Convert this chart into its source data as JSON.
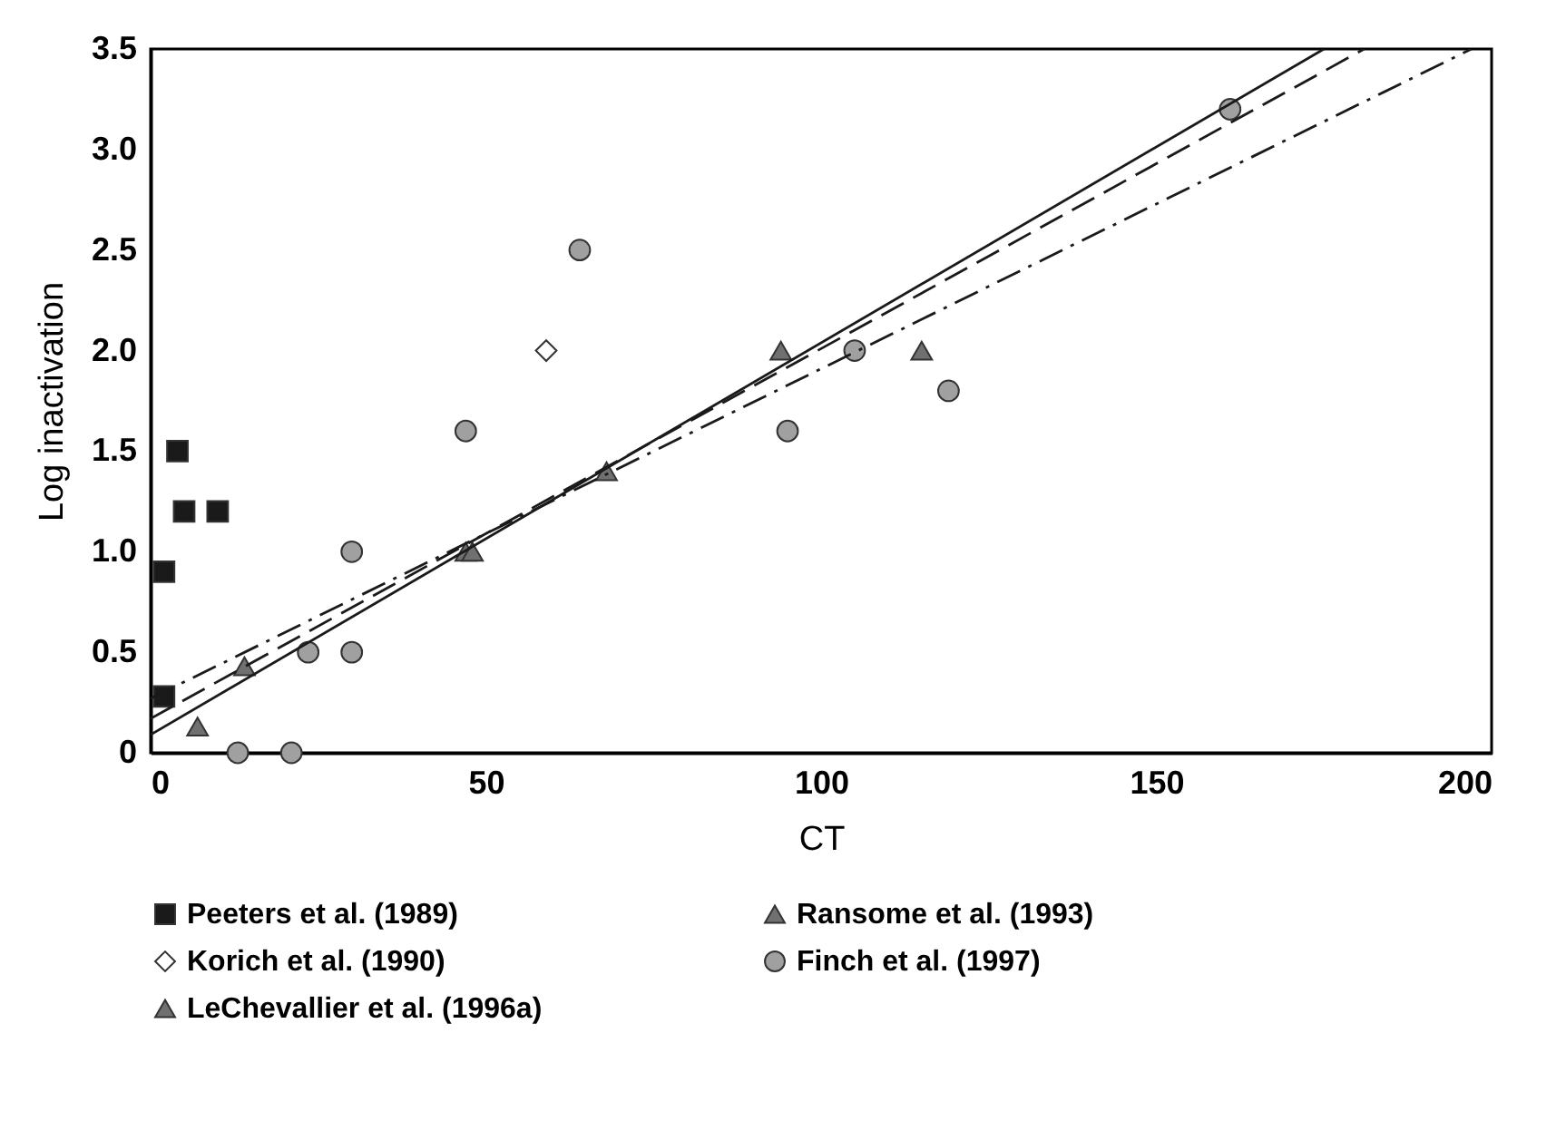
{
  "chart_data": {
    "type": "scatter",
    "xlabel": "CT",
    "ylabel": "Log inactivation",
    "xlim": [
      0,
      200
    ],
    "ylim": [
      0,
      3.5
    ],
    "xticks": [
      0,
      50,
      100,
      150,
      200
    ],
    "yticks": [
      0,
      0.5,
      {
        "value": 1,
        "label": "1.0"
      },
      1.5,
      {
        "value": 2,
        "label": "2.0"
      },
      2.5,
      {
        "value": 3,
        "label": "3.0"
      },
      3.5
    ],
    "legend": "bottom",
    "series": [
      {
        "name": "Peeters et al. (1989)",
        "marker": "square",
        "color": "#1a1a1a",
        "x": [
          2,
          2,
          4,
          5,
          10
        ],
        "values": [
          0.28,
          0.9,
          1.5,
          1.2,
          1.2
        ]
      },
      {
        "name": "Ransome et al. (1993)",
        "marker": "triangle",
        "color": "#707070",
        "x": [
          7,
          14,
          47,
          68
        ],
        "values": [
          0.13,
          0.43,
          1.0,
          1.4
        ]
      },
      {
        "name": "Korich et al. (1990)",
        "marker": "diamond",
        "color": "#ffffff",
        "x": [
          59
        ],
        "values": [
          2.0
        ]
      },
      {
        "name": "Finch et al. (1997)",
        "marker": "circle",
        "color": "#a0a0a0",
        "x": [
          13,
          21,
          23.5,
          30,
          30,
          47,
          64,
          95,
          105,
          119,
          161
        ],
        "values": [
          0,
          0,
          0.5,
          0.5,
          1.0,
          1.6,
          2.5,
          1.6,
          2.0,
          1.8,
          3.2
        ]
      },
      {
        "name": "LeChevallier et al. (1996a)",
        "marker": "triangle",
        "color": "#707070",
        "x": [
          48,
          94,
          115
        ],
        "values": [
          1.0,
          2.0,
          2.0
        ]
      },
      {
        "type": "line",
        "line_style": "solid",
        "color": "#1a1a1a",
        "x": [
          0,
          175
        ],
        "values": [
          0.09,
          3.5
        ]
      },
      {
        "type": "line",
        "line_style": "dashed",
        "color": "#1a1a1a",
        "x": [
          0,
          181
        ],
        "values": [
          0.17,
          3.5
        ]
      },
      {
        "type": "line",
        "line_style": "dashdot",
        "color": "#1a1a1a",
        "x": [
          0,
          197
        ],
        "values": [
          0.27,
          3.5
        ]
      }
    ]
  }
}
